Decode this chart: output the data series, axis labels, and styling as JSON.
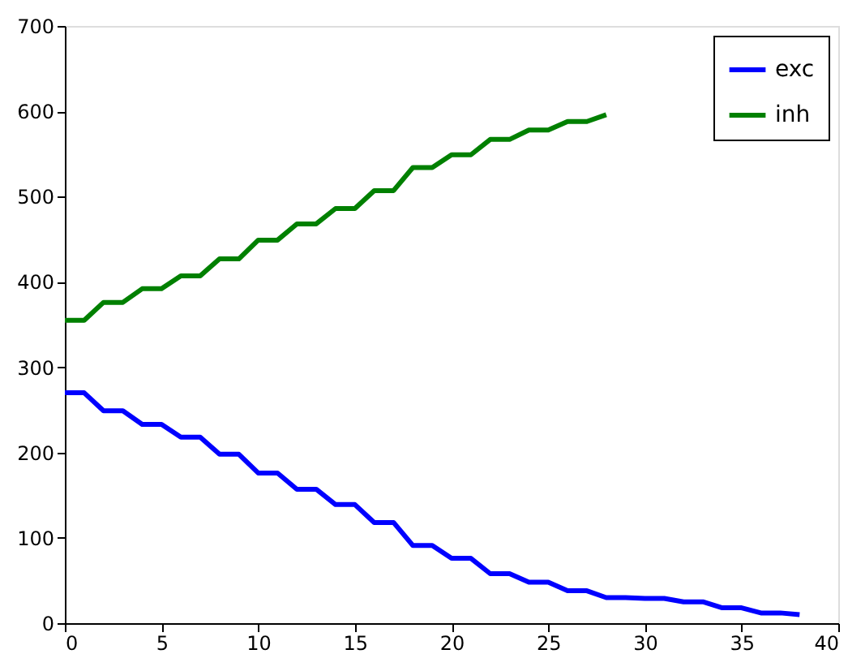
{
  "chart_data": {
    "type": "line",
    "x": [
      0,
      1,
      2,
      3,
      4,
      5,
      6,
      7,
      8,
      9,
      10,
      11,
      12,
      13,
      14,
      15,
      16,
      17,
      18,
      19,
      20,
      21,
      22,
      23,
      24,
      25,
      26,
      27,
      28,
      29,
      30,
      31,
      32,
      33,
      34,
      35,
      36,
      37,
      38
    ],
    "series": [
      {
        "name": "exc",
        "color": "#0000ff",
        "values": [
          270,
          270,
          249,
          249,
          233,
          233,
          218,
          218,
          198,
          198,
          176,
          176,
          157,
          157,
          139,
          139,
          118,
          118,
          91,
          91,
          76,
          76,
          58,
          58,
          48,
          48,
          38,
          38,
          30,
          30,
          29,
          29,
          25,
          25,
          18,
          18,
          12,
          12,
          10
        ]
      },
      {
        "name": "inh",
        "color": "#008000",
        "values": [
          355,
          355,
          376,
          376,
          392,
          392,
          407,
          407,
          427,
          427,
          449,
          449,
          468,
          468,
          486,
          486,
          507,
          507,
          534,
          534,
          549,
          549,
          567,
          567,
          578,
          578,
          588,
          588,
          596,
          null,
          null,
          null,
          null,
          null,
          null,
          null,
          null,
          null,
          null
        ]
      }
    ],
    "xlim": [
      0,
      40
    ],
    "xticks": [
      0,
      5,
      10,
      15,
      20,
      25,
      30,
      35,
      40
    ],
    "ylim": [
      0,
      700
    ],
    "yticks": [
      0,
      100,
      200,
      300,
      400,
      500,
      600,
      700
    ],
    "grid": false,
    "legend": "top right",
    "line_style": "solid",
    "marker": "none"
  }
}
